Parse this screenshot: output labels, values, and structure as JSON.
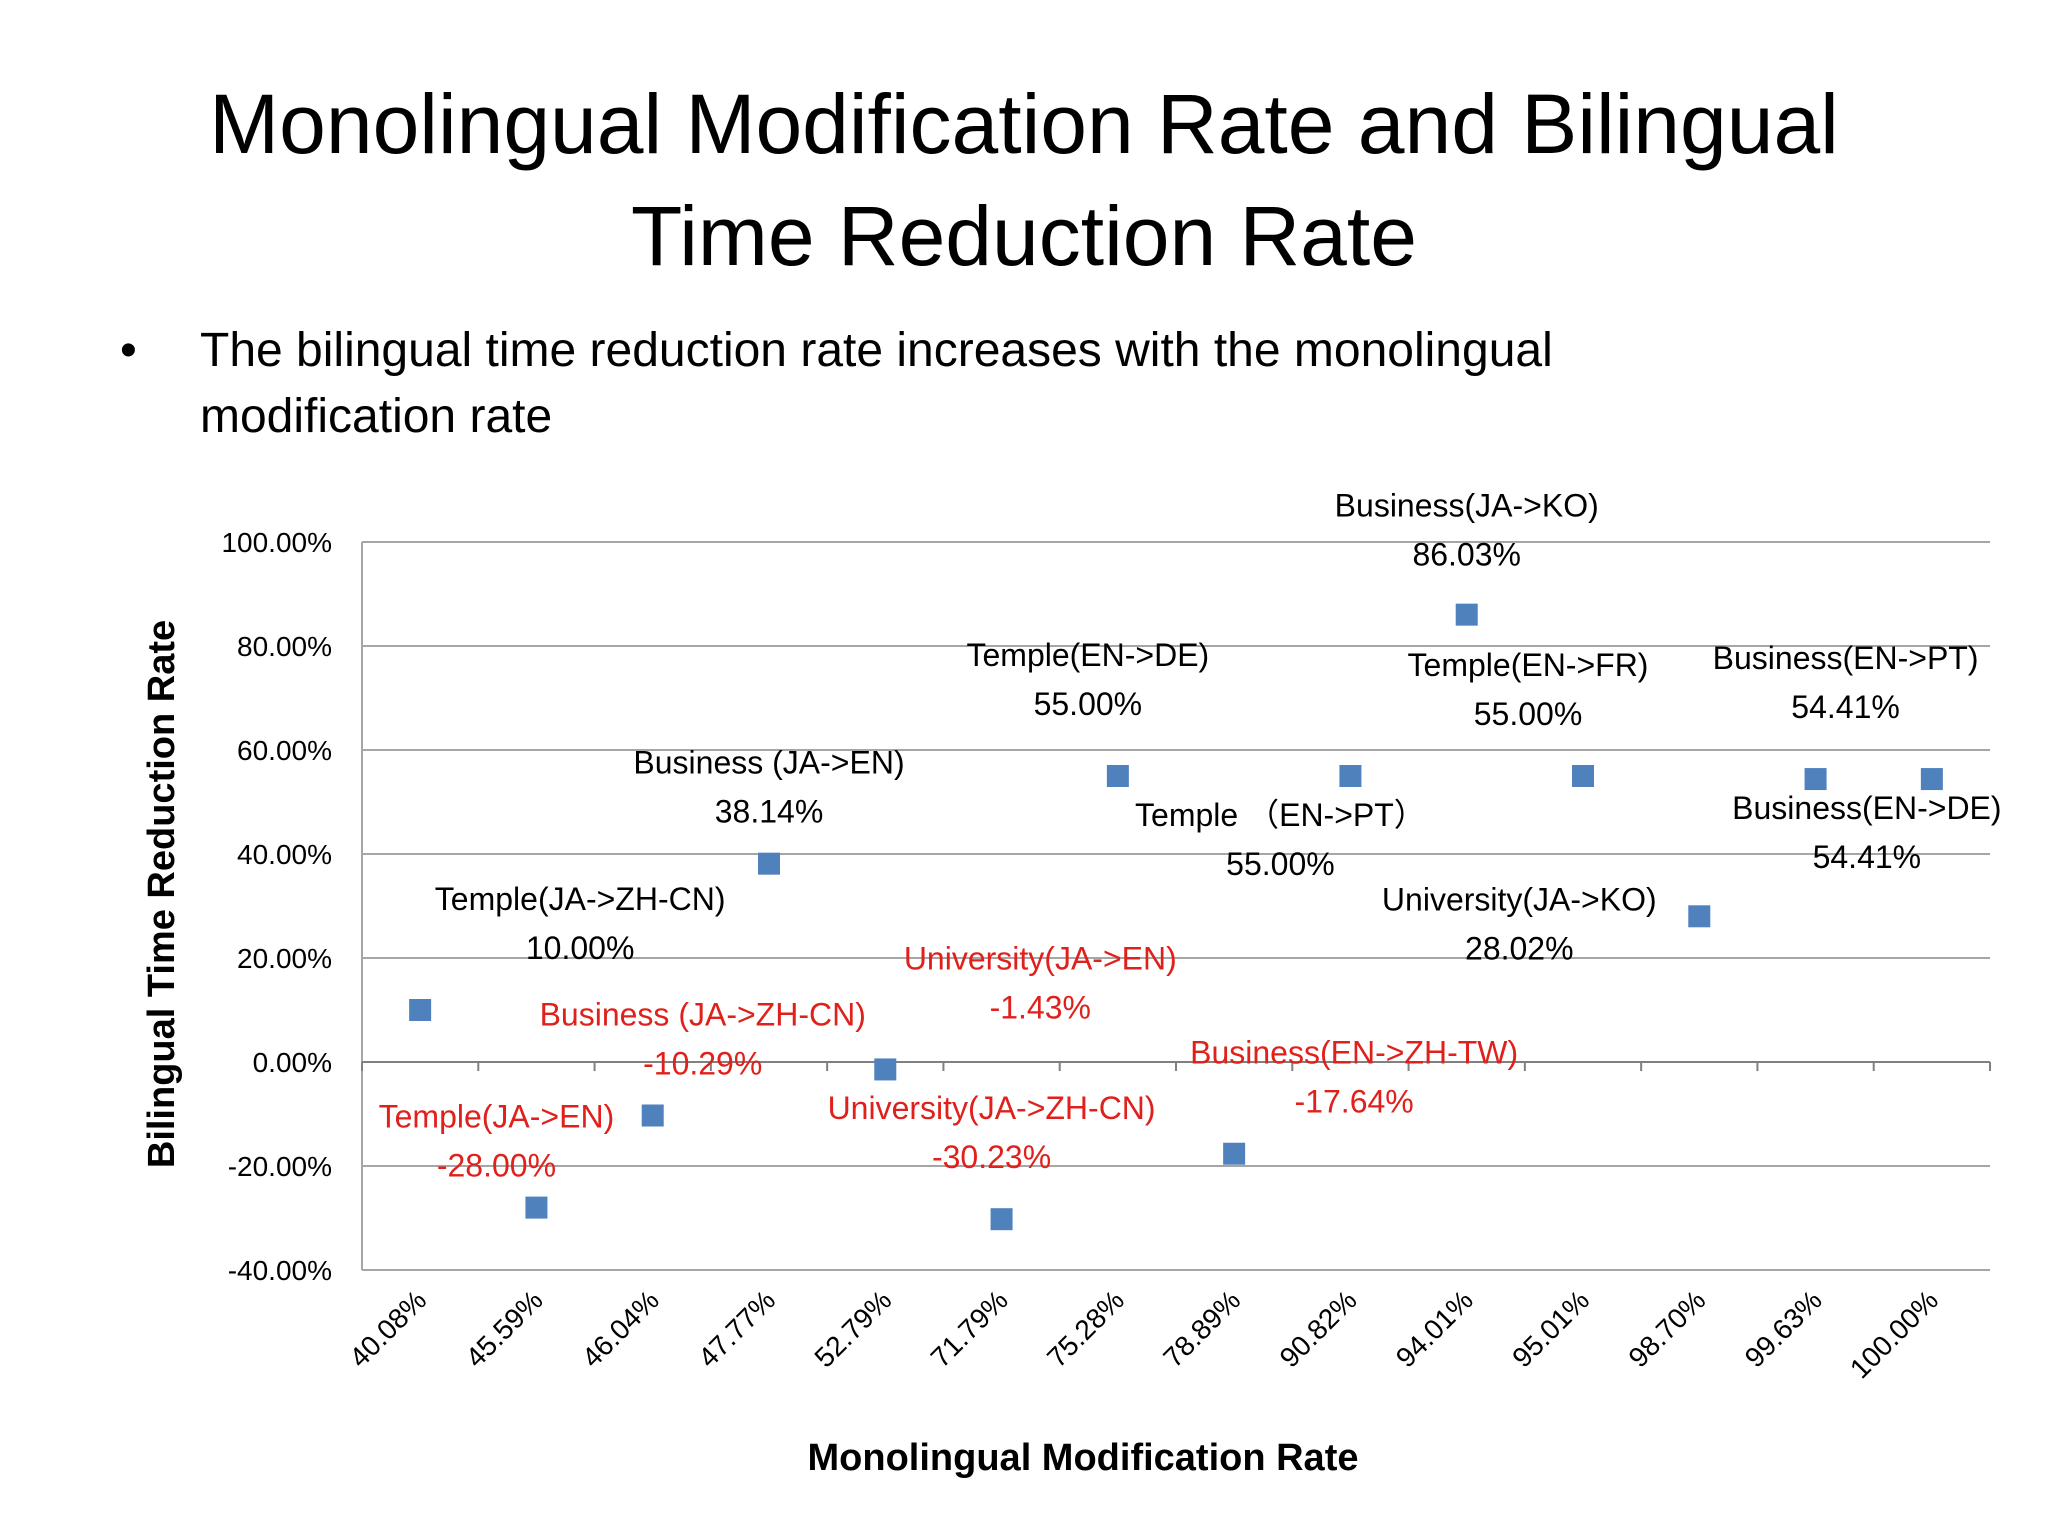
{
  "slide": {
    "title_line1": "Monolingual Modification Rate and Bilingual",
    "title_line2": "Time Reduction Rate",
    "bullet_symbol": "•",
    "bullet_text": "The bilingual time reduction rate increases with the monolingual modification rate"
  },
  "colors": {
    "marker": "#4F81BD",
    "label_default": "#000000",
    "label_highlight": "#E0201B",
    "grid": "#A6A6A6"
  },
  "chart_data": {
    "type": "scatter",
    "title": "",
    "xlabel": "Monolingual Modification Rate",
    "ylabel": "Bilingual Time Reduction Rate",
    "categories": [
      "40.08%",
      "45.59%",
      "46.04%",
      "47.77%",
      "52.79%",
      "71.79%",
      "75.28%",
      "78.89%",
      "90.82%",
      "94.01%",
      "95.01%",
      "98.70%",
      "99.63%",
      "100.00%"
    ],
    "yticks": [
      "100.00%",
      "80.00%",
      "60.00%",
      "40.00%",
      "20.00%",
      "0.00%",
      "-20.00%",
      "-40.00%"
    ],
    "ylim": [
      -40,
      100
    ],
    "grid": true,
    "points": [
      {
        "category": "40.08%",
        "value": 10.0,
        "name": "Temple(JA->ZH-CN)",
        "value_label": "10.00%",
        "highlight": false
      },
      {
        "category": "45.59%",
        "value": -28.0,
        "name": "Temple(JA->EN)",
        "value_label": "-28.00%",
        "highlight": true
      },
      {
        "category": "46.04%",
        "value": -10.29,
        "name": "Business (JA->ZH-CN)",
        "value_label": "-10.29%",
        "highlight": true
      },
      {
        "category": "47.77%",
        "value": 38.14,
        "name": "Business (JA->EN)",
        "value_label": "38.14%",
        "highlight": false
      },
      {
        "category": "52.79%",
        "value": -1.43,
        "name": "University(JA->EN)",
        "value_label": "-1.43%",
        "highlight": true
      },
      {
        "category": "71.79%",
        "value": -30.23,
        "name": "University(JA->ZH-CN)",
        "value_label": "-30.23%",
        "highlight": true
      },
      {
        "category": "75.28%",
        "value": 55.0,
        "name": "Temple(EN->DE)",
        "value_label": "55.00%",
        "highlight": false
      },
      {
        "category": "78.89%",
        "value": -17.64,
        "name": "Business(EN->ZH-TW)",
        "value_label": "-17.64%",
        "highlight": true
      },
      {
        "category": "90.82%",
        "value": 55.0,
        "name": "Temple （EN->PT）",
        "value_label": "55.00%",
        "highlight": false
      },
      {
        "category": "94.01%",
        "value": 86.03,
        "name": "Business(JA->KO)",
        "value_label": "86.03%",
        "highlight": false
      },
      {
        "category": "95.01%",
        "value": 55.0,
        "name": "Temple(EN->FR)",
        "value_label": "55.00%",
        "highlight": false
      },
      {
        "category": "98.70%",
        "value": 28.02,
        "name": "University(JA->KO)",
        "value_label": "28.02%",
        "highlight": false
      },
      {
        "category": "99.63%",
        "value": 54.41,
        "name": "Business(EN->PT)",
        "value_label": "54.41%",
        "highlight": false
      },
      {
        "category": "100.00%",
        "value": 54.41,
        "name": "Business(EN->DE)",
        "value_label": "54.41%",
        "highlight": false
      }
    ]
  }
}
